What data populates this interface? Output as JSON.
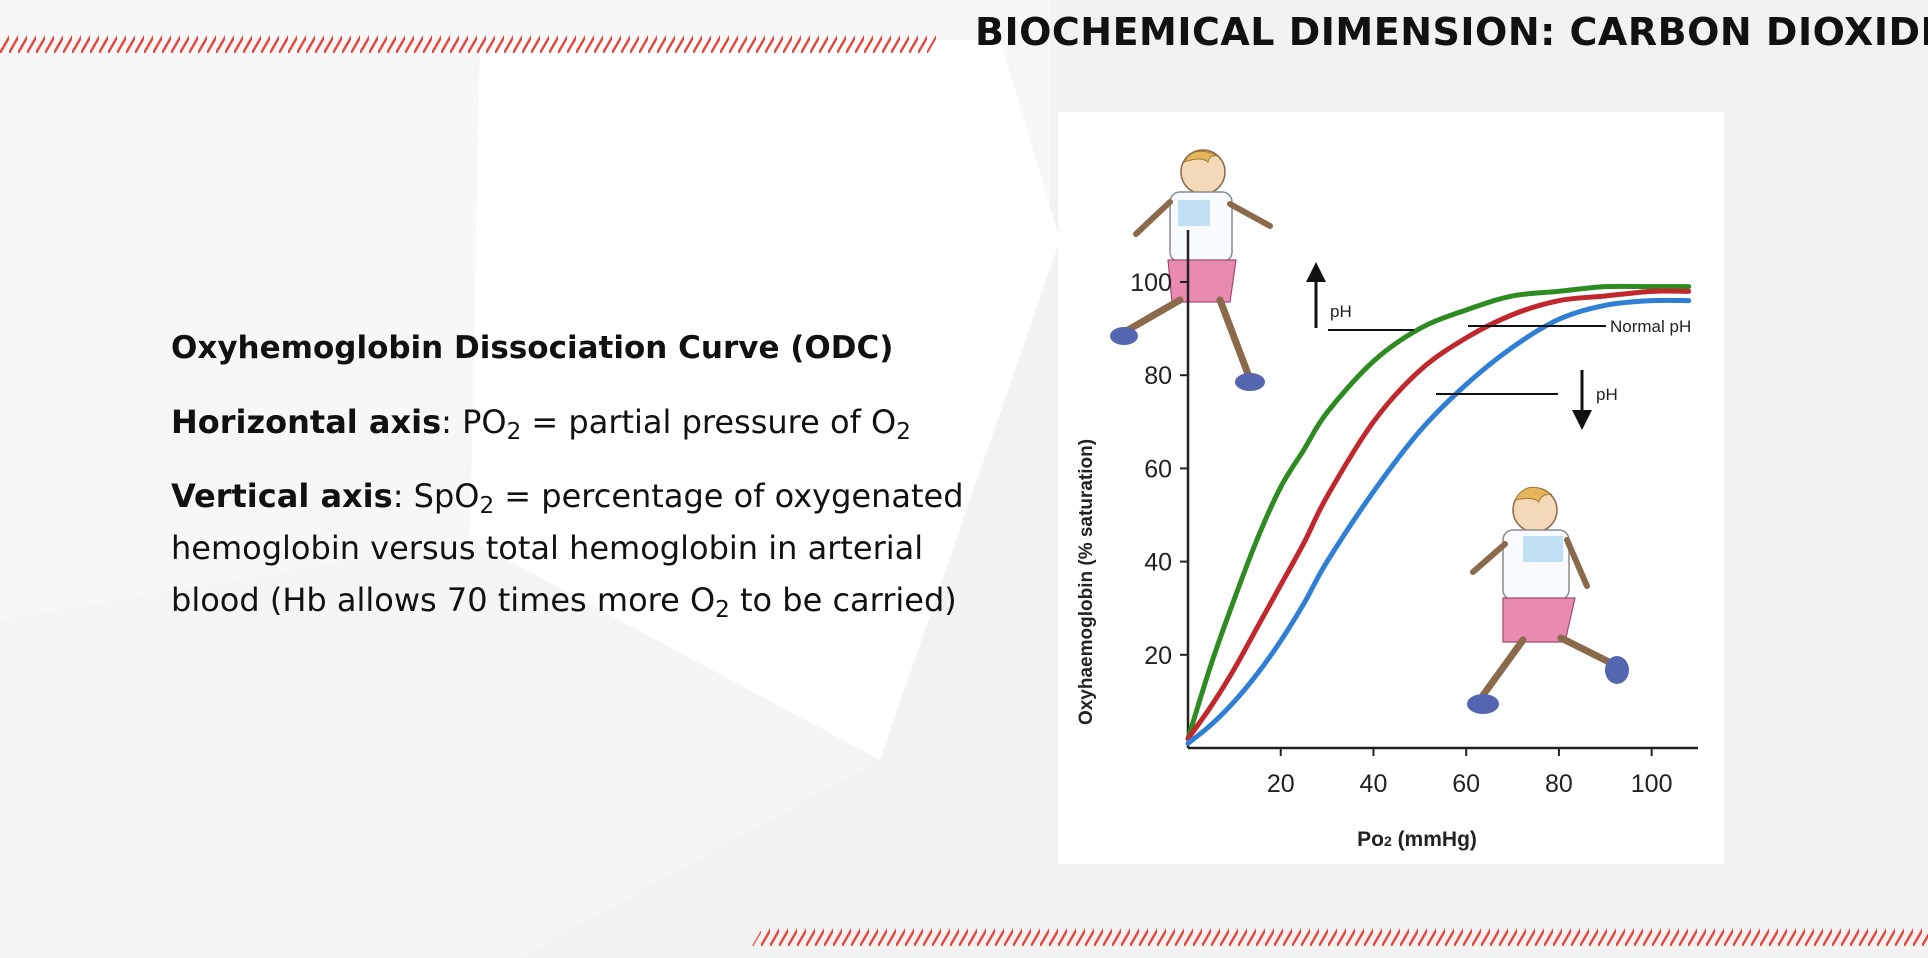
{
  "slide": {
    "title": "BIOCHEMICAL DIMENSION: CARBON DIOXIDE",
    "accent_color": "#e8443a"
  },
  "text": {
    "odc_title": "Oxyhemoglobin Dissociation Curve (ODC)",
    "horizontal_label": "Horizontal axis",
    "horizontal_text_a": ": PO",
    "horizontal_text_sub1": "2",
    "horizontal_text_b": " = partial pressure of O",
    "horizontal_text_sub2": "2",
    "vertical_label": "Vertical axis",
    "vertical_text_a": ": SpO",
    "vertical_text_sub1": "2",
    "vertical_text_b": " = percentage of oxygenated hemoglobin versus total hemoglobin in arterial blood (Hb allows 70 times more O",
    "vertical_text_sub2": "2",
    "vertical_text_c": " to be carried)"
  },
  "chart_data": {
    "type": "line",
    "xlabel_main": "Po",
    "xlabel_sub": "2",
    "xlabel_unit": " (mmHg)",
    "ylabel": "Oxyhaemoglobin (% saturation)",
    "xlim": [
      0,
      110
    ],
    "ylim": [
      0,
      100
    ],
    "xticks": [
      20,
      40,
      60,
      80,
      100
    ],
    "yticks": [
      20,
      40,
      60,
      80,
      100
    ],
    "series": [
      {
        "color": "#2e8b22",
        "x": [
          0,
          5,
          10,
          15,
          20,
          25,
          30,
          40,
          50,
          60,
          70,
          80,
          90,
          100,
          108
        ],
        "y": [
          2,
          18,
          32,
          45,
          56,
          64,
          72,
          83,
          90,
          94,
          97,
          98,
          99,
          99,
          99
        ]
      },
      {
        "color": "#c0282d",
        "x": [
          0,
          5,
          10,
          15,
          20,
          25,
          30,
          40,
          50,
          60,
          70,
          80,
          90,
          100,
          108
        ],
        "y": [
          2,
          9,
          17,
          26,
          35,
          44,
          54,
          70,
          81,
          88,
          93,
          96,
          97,
          98,
          98
        ]
      },
      {
        "color": "#2f7fd4",
        "x": [
          0,
          5,
          10,
          15,
          20,
          25,
          30,
          40,
          50,
          60,
          70,
          80,
          90,
          100,
          108
        ],
        "y": [
          1,
          5,
          10,
          16,
          23,
          31,
          40,
          55,
          68,
          78,
          86,
          92,
          95,
          96,
          96
        ]
      }
    ],
    "annotations": {
      "up_ph": "pH",
      "down_ph": "pH",
      "normal_ph": "Normal pH"
    }
  }
}
